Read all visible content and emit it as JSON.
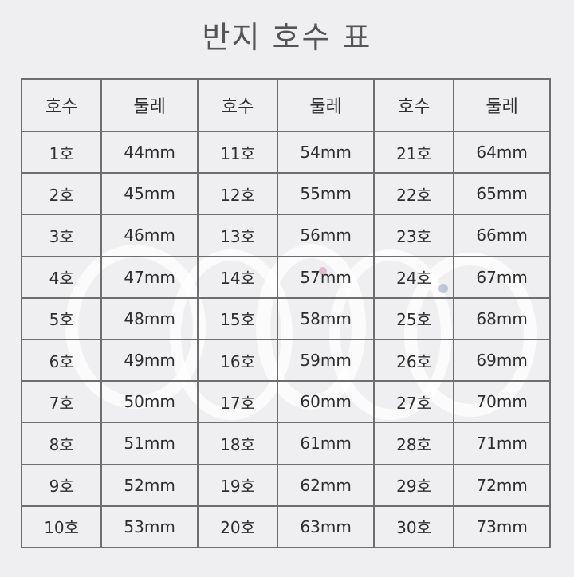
{
  "title": "반지 호수 표",
  "table": {
    "headers": [
      "호수",
      "둘레",
      "호수",
      "둘레",
      "호수",
      "둘레"
    ],
    "rows": [
      [
        "1호",
        "44mm",
        "11호",
        "54mm",
        "21호",
        "64mm"
      ],
      [
        "2호",
        "45mm",
        "12호",
        "55mm",
        "22호",
        "65mm"
      ],
      [
        "3호",
        "46mm",
        "13호",
        "56mm",
        "23호",
        "66mm"
      ],
      [
        "4호",
        "47mm",
        "14호",
        "57mm",
        "24호",
        "67mm"
      ],
      [
        "5호",
        "48mm",
        "15호",
        "58mm",
        "25호",
        "68mm"
      ],
      [
        "6호",
        "49mm",
        "16호",
        "59mm",
        "26호",
        "69mm"
      ],
      [
        "7호",
        "50mm",
        "17호",
        "60mm",
        "27호",
        "70mm"
      ],
      [
        "8호",
        "51mm",
        "18호",
        "61mm",
        "28호",
        "71mm"
      ],
      [
        "9호",
        "52mm",
        "19호",
        "62mm",
        "29호",
        "72mm"
      ],
      [
        "10호",
        "53mm",
        "20호",
        "63mm",
        "30호",
        "73mm"
      ]
    ]
  },
  "colors": {
    "background": "#efeff1",
    "border": "#6e6e6e",
    "title": "#555555"
  }
}
